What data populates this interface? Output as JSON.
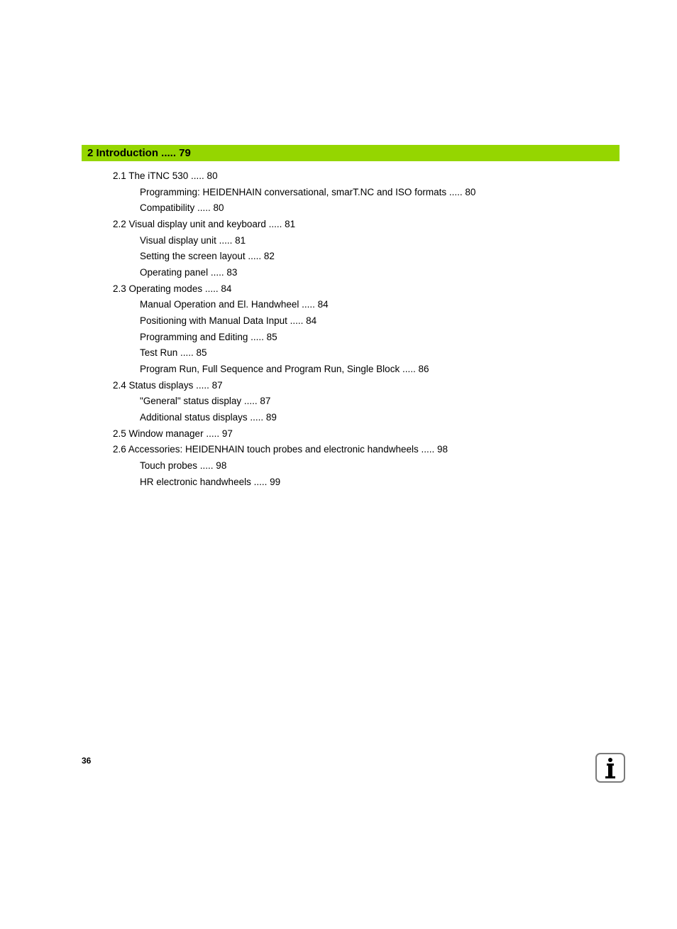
{
  "chapter": {
    "title": "2 Introduction ..... 79",
    "background_color": "#95d600"
  },
  "toc": [
    {
      "level": "section",
      "text": "2.1 The iTNC 530 ..... 80"
    },
    {
      "level": "subsection",
      "text": "Programming: HEIDENHAIN conversational, smarT.NC and ISO formats ..... 80"
    },
    {
      "level": "subsection",
      "text": "Compatibility ..... 80"
    },
    {
      "level": "section",
      "text": "2.2 Visual display unit and keyboard ..... 81"
    },
    {
      "level": "subsection",
      "text": "Visual display unit ..... 81"
    },
    {
      "level": "subsection",
      "text": "Setting the screen layout ..... 82"
    },
    {
      "level": "subsection",
      "text": "Operating panel ..... 83"
    },
    {
      "level": "section",
      "text": "2.3 Operating modes ..... 84"
    },
    {
      "level": "subsection",
      "text": "Manual Operation and El. Handwheel ..... 84"
    },
    {
      "level": "subsection",
      "text": "Positioning with Manual Data Input ..... 84"
    },
    {
      "level": "subsection",
      "text": "Programming and Editing ..... 85"
    },
    {
      "level": "subsection",
      "text": "Test Run ..... 85"
    },
    {
      "level": "subsection",
      "text": "Program Run, Full Sequence and Program Run, Single Block ..... 86"
    },
    {
      "level": "section",
      "text": "2.4 Status displays ..... 87"
    },
    {
      "level": "subsection",
      "text": "\"General\" status display ..... 87"
    },
    {
      "level": "subsection",
      "text": "Additional status displays ..... 89"
    },
    {
      "level": "section",
      "text": "2.5 Window manager ..... 97"
    },
    {
      "level": "section",
      "text": "2.6 Accessories: HEIDENHAIN touch probes and electronic handwheels ..... 98"
    },
    {
      "level": "subsection",
      "text": "Touch probes ..... 98"
    },
    {
      "level": "subsection",
      "text": "HR electronic handwheels ..... 99"
    }
  ],
  "page_number": "36",
  "info_icon_border_color": "#7a7a7a"
}
